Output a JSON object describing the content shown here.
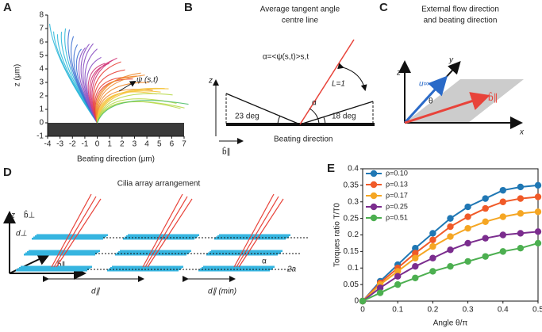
{
  "panels": {
    "A": {
      "letter": "A",
      "ylabel": "z (μm)",
      "xlabel": "Beating direction (μm)",
      "annotation": "ψ (s,t)",
      "xlim": [
        -4,
        7
      ],
      "xticks": [
        -4,
        -3,
        -2,
        -1,
        0,
        1,
        2,
        3,
        4,
        5,
        6,
        7
      ],
      "ylim": [
        -1,
        8
      ],
      "yticks": [
        -1,
        0,
        1,
        2,
        3,
        4,
        5,
        6,
        7,
        8
      ]
    },
    "B": {
      "letter": "B",
      "title_1": "Average tangent angle",
      "title_2": "centre line",
      "formula": "α=<ψ(s,t)>s,t",
      "z": "z",
      "length": "L=1",
      "alpha": "α",
      "left_angle": "23 deg",
      "right_angle": "18 deg",
      "b": "b̂∥",
      "xlabel": "Beating direction"
    },
    "C": {
      "letter": "C",
      "title_1": "External flow direction",
      "title_2": "and beating direction",
      "z": "z",
      "y": "y",
      "x": "x",
      "u": "u∞",
      "theta": "θ",
      "b": "b̂∥"
    },
    "D": {
      "letter": "D",
      "title": "Cilia array arrangement",
      "z": "z",
      "b_perp": "b̂⊥",
      "d_perp": "d⊥",
      "b_par": "b̂∥",
      "alpha": "α",
      "radius": "2a",
      "d_par": "d∥",
      "d_min": "d∥ (min)"
    },
    "E": {
      "letter": "E"
    }
  },
  "chart_data": {
    "type": "line",
    "ylabel": "Torques ratio T/T0",
    "xlabel": "Angle θ/π",
    "x": [
      0,
      0.05,
      0.1,
      0.15,
      0.2,
      0.25,
      0.3,
      0.35,
      0.4,
      0.45,
      0.5
    ],
    "series": [
      {
        "name": "ρ=0.10",
        "color": "#1f77b4",
        "values": [
          0,
          0.06,
          0.11,
          0.16,
          0.205,
          0.25,
          0.285,
          0.31,
          0.335,
          0.345,
          0.35
        ]
      },
      {
        "name": "ρ=0.13",
        "color": "#f05a28",
        "values": [
          0,
          0.055,
          0.1,
          0.145,
          0.185,
          0.225,
          0.255,
          0.28,
          0.3,
          0.31,
          0.315
        ]
      },
      {
        "name": "ρ=0.17",
        "color": "#f5a623",
        "values": [
          0,
          0.05,
          0.09,
          0.13,
          0.165,
          0.195,
          0.22,
          0.24,
          0.255,
          0.265,
          0.27
        ]
      },
      {
        "name": "ρ=0.25",
        "color": "#7b2d8e",
        "values": [
          0,
          0.04,
          0.075,
          0.105,
          0.13,
          0.155,
          0.175,
          0.19,
          0.2,
          0.205,
          0.21
        ]
      },
      {
        "name": "ρ=0.51",
        "color": "#4caf50",
        "values": [
          0,
          0.025,
          0.05,
          0.07,
          0.09,
          0.105,
          0.12,
          0.135,
          0.15,
          0.16,
          0.175
        ]
      }
    ],
    "xlim": [
      0,
      0.5
    ],
    "xticks": [
      0,
      0.1,
      0.2,
      0.3,
      0.4,
      0.5
    ],
    "ylim": [
      0,
      0.4
    ],
    "yticks": [
      0,
      0.05,
      0.1,
      0.15,
      0.2,
      0.25,
      0.3,
      0.35,
      0.4
    ],
    "legend": "upper left"
  }
}
